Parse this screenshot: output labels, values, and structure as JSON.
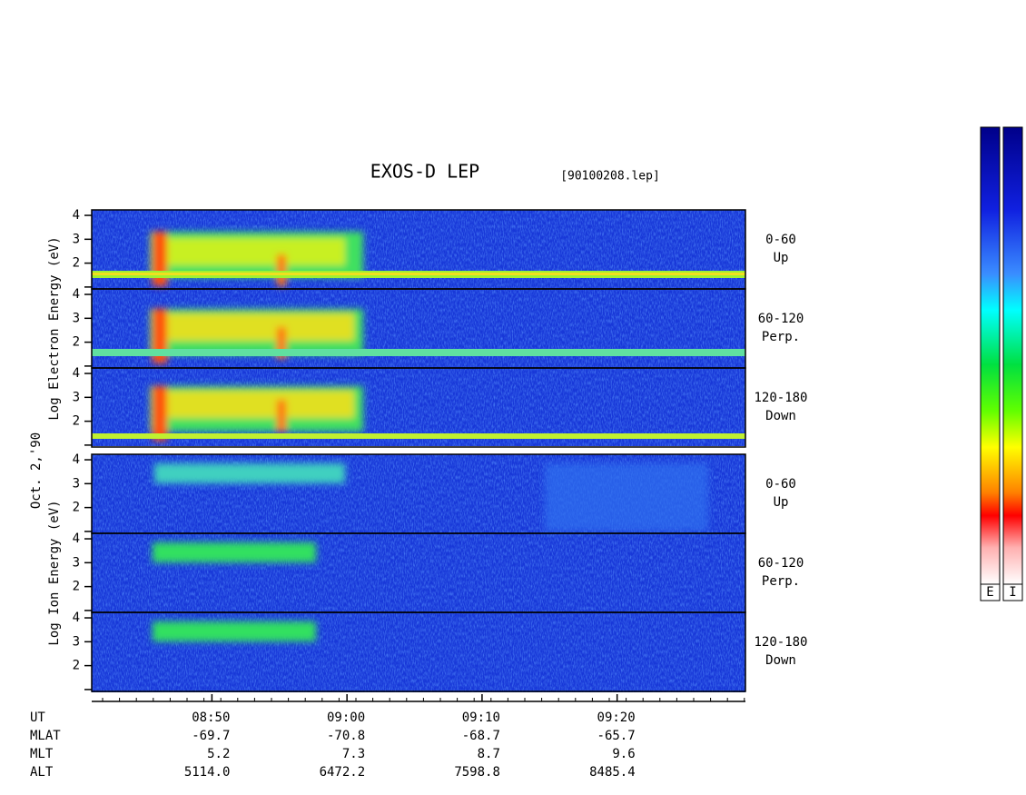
{
  "chart_data": {
    "type": "spectrogram",
    "title": "EXOS-D LEP",
    "file": "[90100208.lep]",
    "date": "Oct. 2,'90",
    "groups": [
      {
        "ylabel": "Log  Electron  Energy (eV)",
        "panels": [
          {
            "label": "0-60",
            "sublabel": "Up"
          },
          {
            "label": "60-120",
            "sublabel": "Perp."
          },
          {
            "label": "120-180",
            "sublabel": "Down"
          }
        ]
      },
      {
        "ylabel": "Log  Ion  Energy (eV)",
        "panels": [
          {
            "label": "0-60",
            "sublabel": "Up"
          },
          {
            "label": "60-120",
            "sublabel": "Perp."
          },
          {
            "label": "120-180",
            "sublabel": "Down"
          }
        ]
      }
    ],
    "ylim": [
      0.92,
      4.23
    ],
    "yticks": [
      2,
      3,
      4
    ],
    "minor_yticks": [
      1
    ],
    "xlim": [
      521.1,
      569.5
    ],
    "xticks": [
      {
        "value": 530,
        "label": "08:50"
      },
      {
        "value": 540,
        "label": "09:00"
      },
      {
        "value": 550,
        "label": "09:10"
      },
      {
        "value": 560,
        "label": "09:20"
      }
    ],
    "ephemeris": {
      "x_label": "UT",
      "rows": [
        {
          "name": "MLAT",
          "values": [
            "-69.7",
            "-70.8",
            "-68.7",
            "-65.7"
          ]
        },
        {
          "name": "MLT",
          "values": [
            "5.2",
            "7.3",
            "8.7",
            "9.6"
          ]
        },
        {
          "name": "ALT",
          "values": [
            "5114.0",
            "6472.2",
            "7598.8",
            "8485.4"
          ]
        }
      ]
    },
    "colorbar": {
      "labels": [
        "E",
        "I"
      ]
    }
  }
}
